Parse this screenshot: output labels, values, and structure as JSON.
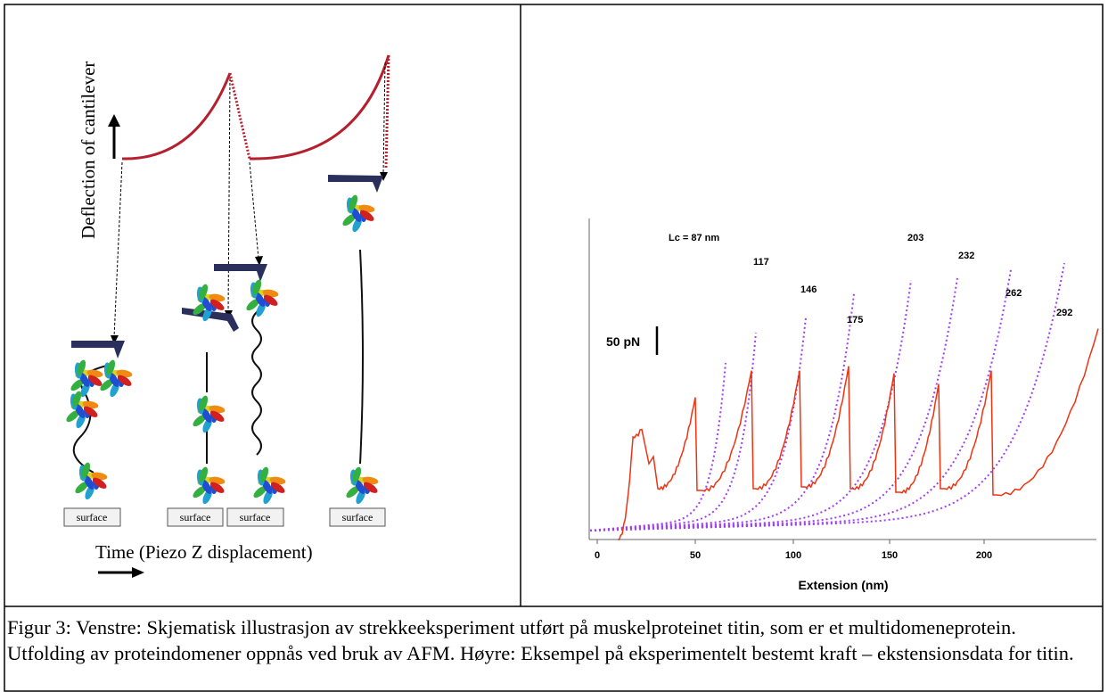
{
  "left_panel": {
    "y_axis_label": "Deflection of cantilever",
    "surface_labels": [
      "surface",
      "surface",
      "surface",
      "surface"
    ],
    "x_axis_label": "Time (Piezo Z displacement)"
  },
  "right_panel": {
    "curve_labels": [
      "Lc = 87 nm",
      "117",
      "146",
      "175",
      "203",
      "232",
      "262",
      "292"
    ],
    "scale_label": "50 pN",
    "x_tick_labels": [
      "0",
      "50",
      "100",
      "150",
      "200"
    ],
    "x_axis_label": "Extension (nm)"
  },
  "caption": "Figur 3: Venstre: Skjematisk illustrasjon av strekkeeksperiment utført på muskelproteinet titin, som er et multidomeneprotein. Utfolding av proteindomener oppnås ved bruk av AFM. Høyre: Eksempel på eksperimentelt bestemt kraft – ekstensionsdata for titin."
}
